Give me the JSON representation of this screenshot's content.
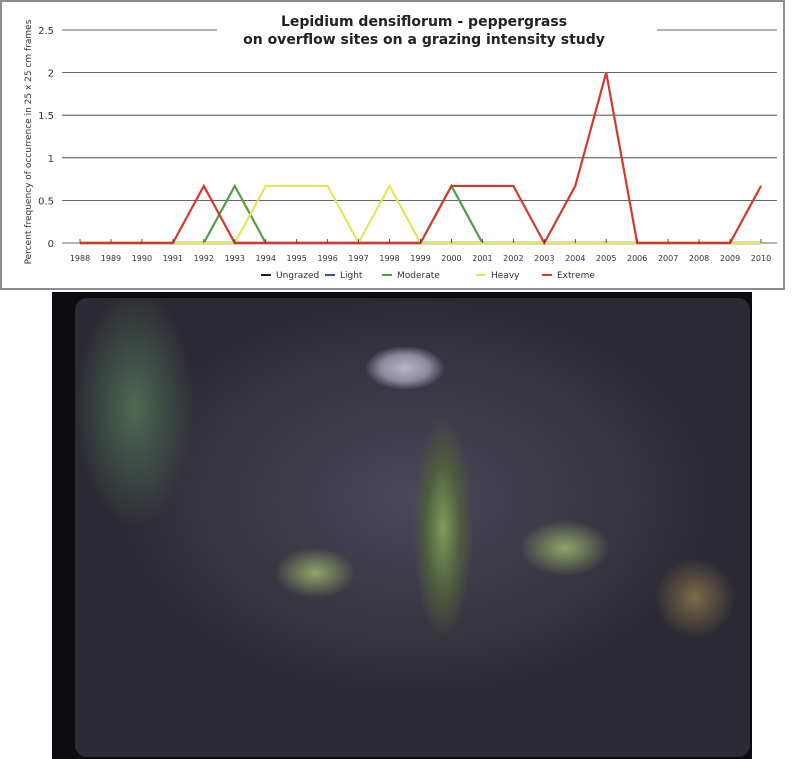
{
  "chart_data": {
    "type": "line",
    "title": "Lepidium densiflorum  -  peppergrass",
    "subtitle": "on overflow sites on a grazing intensity study",
    "xlabel": "",
    "ylabel": "Percent frequency of occurrence in 25 x 25 cm frames",
    "ylim": [
      0,
      2.5
    ],
    "yticks": [
      "0",
      "0.5",
      "1",
      "1.5",
      "2",
      "2.5"
    ],
    "grid": true,
    "legend_position": "bottom",
    "x": [
      "1988",
      "1989",
      "1990",
      "1991",
      "1992",
      "1993",
      "1994",
      "1995",
      "1996",
      "1997",
      "1998",
      "1999",
      "2000",
      "2001",
      "2002",
      "2003",
      "2004",
      "2005",
      "2006",
      "2007",
      "2008",
      "2009",
      "2010"
    ],
    "series": [
      {
        "name": "Ungrazed",
        "color": "#1a1a1a",
        "values": [
          0,
          0,
          0,
          0,
          0,
          0,
          0,
          0,
          0,
          0,
          0,
          0,
          0,
          0,
          0,
          0,
          0,
          0,
          0,
          0,
          0,
          0,
          0
        ]
      },
      {
        "name": "Light",
        "color": "#3a4fa0",
        "values": [
          0,
          0,
          0,
          0,
          0,
          0,
          0,
          0,
          0,
          0,
          0,
          0,
          0,
          0,
          0,
          0,
          0,
          0,
          0,
          0,
          0,
          0,
          0
        ]
      },
      {
        "name": "Moderate",
        "color": "#4fa043",
        "values": [
          0,
          0,
          0,
          0,
          0,
          0.67,
          0,
          0,
          0,
          0,
          0,
          0,
          0.67,
          0,
          0,
          0,
          0,
          0,
          0,
          0,
          0,
          0,
          0
        ]
      },
      {
        "name": "Heavy",
        "color": "#e6e45a",
        "values": [
          0,
          0,
          0,
          0,
          0,
          0,
          0.67,
          0.67,
          0.67,
          0,
          0.67,
          0,
          0,
          0,
          0,
          0,
          0,
          0,
          0,
          0,
          0,
          0,
          0
        ]
      },
      {
        "name": "Extreme",
        "color": "#d33a2c",
        "values": [
          0,
          0,
          0,
          0,
          0.67,
          0,
          0,
          0,
          0,
          0,
          0,
          0,
          0.67,
          0.67,
          0.67,
          0,
          0.67,
          2,
          0,
          0,
          0,
          0,
          0.67
        ]
      }
    ]
  }
}
